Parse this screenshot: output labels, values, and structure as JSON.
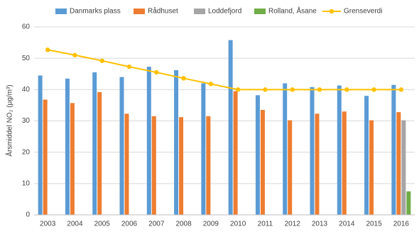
{
  "chart_data": {
    "type": "bar",
    "categories": [
      "2003",
      "2004",
      "2005",
      "2006",
      "2007",
      "2008",
      "2009",
      "2010",
      "2011",
      "2012",
      "2013",
      "2014",
      "2015",
      "2016"
    ],
    "y_label": "Årsmiddel NO₂ (µg/m³)",
    "ylim": [
      0,
      60
    ],
    "yticks": [
      0,
      10,
      20,
      30,
      40,
      50,
      60
    ],
    "grid": true,
    "legend": "top",
    "series": [
      {
        "name": "Danmarks plass",
        "color": "#5b9bd5",
        "values": [
          44.5,
          43.5,
          45.5,
          44,
          47.3,
          46.2,
          42,
          55.8,
          38.2,
          42,
          40.8,
          41.3,
          38,
          41.5
        ]
      },
      {
        "name": "Rådhuset",
        "color": "#ed7d31",
        "values": [
          36.8,
          35.7,
          39.2,
          32.3,
          31.5,
          31.2,
          31.5,
          39.5,
          33.5,
          30.2,
          32.3,
          33,
          30.2,
          32.8
        ]
      },
      {
        "name": "Loddefjord",
        "color": "#a5a5a5",
        "values": [
          null,
          null,
          null,
          null,
          null,
          null,
          null,
          null,
          null,
          null,
          null,
          null,
          null,
          30.2
        ]
      },
      {
        "name": "Rolland, Åsane",
        "color": "#70ad47",
        "values": [
          null,
          null,
          null,
          null,
          null,
          null,
          null,
          null,
          null,
          null,
          null,
          null,
          null,
          7.5
        ]
      },
      {
        "name": "Grenseverdi",
        "color": "#ffc000",
        "type": "line",
        "values": [
          52.7,
          51,
          49.2,
          47.3,
          45.5,
          43.6,
          41.8,
          40,
          40,
          40,
          40,
          40,
          40,
          40
        ]
      }
    ]
  }
}
